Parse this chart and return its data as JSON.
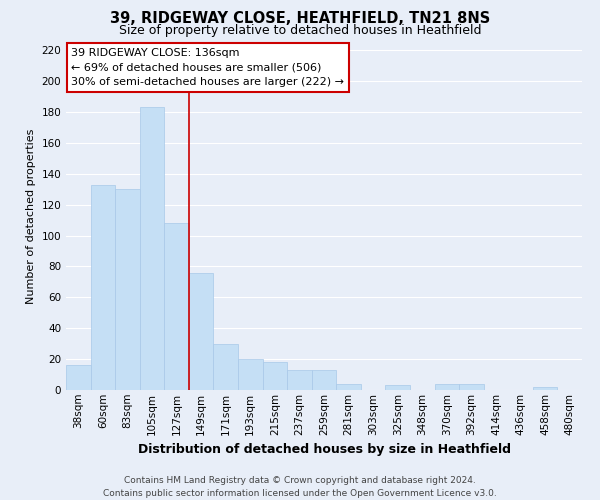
{
  "title": "39, RIDGEWAY CLOSE, HEATHFIELD, TN21 8NS",
  "subtitle": "Size of property relative to detached houses in Heathfield",
  "xlabel": "Distribution of detached houses by size in Heathfield",
  "ylabel": "Number of detached properties",
  "footer_line1": "Contains HM Land Registry data © Crown copyright and database right 2024.",
  "footer_line2": "Contains public sector information licensed under the Open Government Licence v3.0.",
  "bar_labels": [
    "38sqm",
    "60sqm",
    "83sqm",
    "105sqm",
    "127sqm",
    "149sqm",
    "171sqm",
    "193sqm",
    "215sqm",
    "237sqm",
    "259sqm",
    "281sqm",
    "303sqm",
    "325sqm",
    "348sqm",
    "370sqm",
    "392sqm",
    "414sqm",
    "436sqm",
    "458sqm",
    "480sqm"
  ],
  "bar_heights": [
    16,
    133,
    130,
    183,
    108,
    76,
    30,
    20,
    18,
    13,
    13,
    4,
    0,
    3,
    0,
    4,
    4,
    0,
    0,
    2,
    0
  ],
  "bar_color": "#c5dff5",
  "bar_edge_color": "#a8c8e8",
  "vline_x_index": 4.5,
  "vline_color": "#cc0000",
  "annotation_title": "39 RIDGEWAY CLOSE: 136sqm",
  "annotation_line1": "← 69% of detached houses are smaller (506)",
  "annotation_line2": "30% of semi-detached houses are larger (222) →",
  "annotation_box_facecolor": "#ffffff",
  "annotation_box_edgecolor": "#cc0000",
  "bg_color": "#e8eef8",
  "plot_bg_color": "#e8eef8",
  "ylim": [
    0,
    225
  ],
  "yticks": [
    0,
    20,
    40,
    60,
    80,
    100,
    120,
    140,
    160,
    180,
    200,
    220
  ],
  "grid_color": "#ffffff",
  "title_fontsize": 10.5,
  "subtitle_fontsize": 9,
  "xlabel_fontsize": 9,
  "ylabel_fontsize": 8,
  "tick_fontsize": 7.5,
  "footer_fontsize": 6.5
}
